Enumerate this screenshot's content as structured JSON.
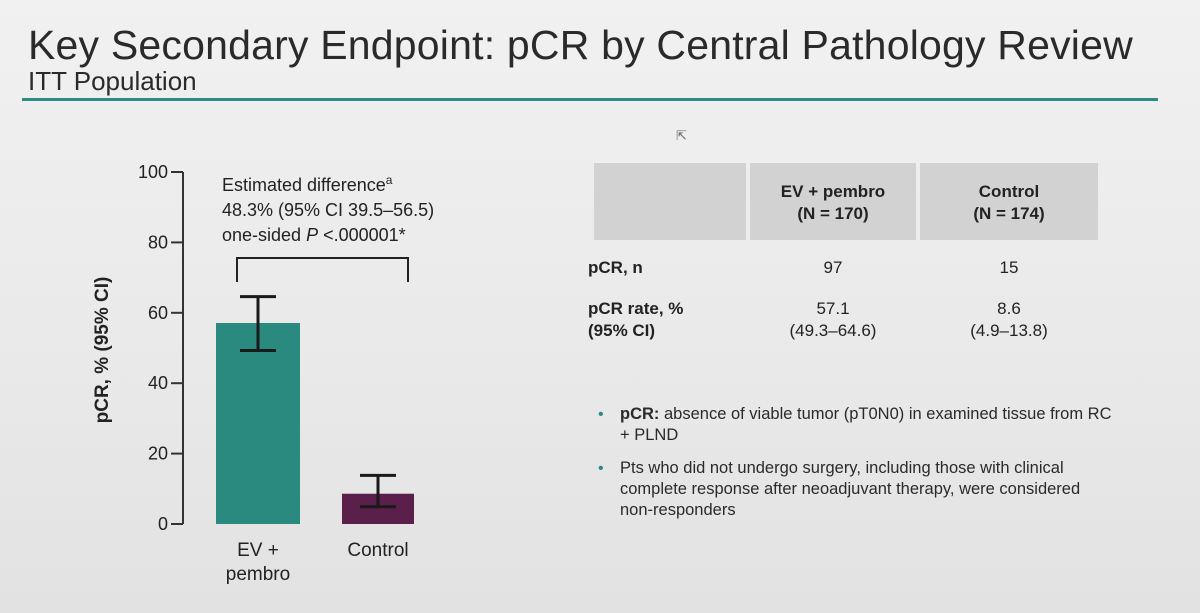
{
  "slide": {
    "title": "Key Secondary Endpoint: pCR by Central Pathology Review",
    "subtitle": "ITT Population",
    "accent_color": "#2e8a82",
    "cursor_icon": "mouse-pointer-icon"
  },
  "chart_data": {
    "type": "bar",
    "ylabel": "pCR, % (95% CI)",
    "ylim": [
      0,
      100
    ],
    "yticks": [
      "0",
      "20",
      "40",
      "60",
      "80",
      "100"
    ],
    "categories": [
      "EV +\npembro",
      "Control"
    ],
    "category_lines": [
      [
        "EV +",
        "pembro"
      ],
      [
        "Control"
      ]
    ],
    "values": [
      57.1,
      8.6
    ],
    "ci_low": [
      49.3,
      4.9
    ],
    "ci_high": [
      64.6,
      13.8
    ],
    "colors": [
      "#2a8a80",
      "#5a1f4a"
    ],
    "annotation": {
      "line1": "Estimated difference",
      "line1_sup": "a",
      "line2": "48.3% (95% CI 39.5–56.5)",
      "line3_prefix": "one-sided ",
      "line3_p": "P",
      "line3_suffix": " <.000001*"
    }
  },
  "table": {
    "columns": [
      {
        "line1": "EV + pembro",
        "line2": "(N = 170)"
      },
      {
        "line1": "Control",
        "line2": "(N = 174)"
      }
    ],
    "rows": [
      {
        "label1": "pCR, n",
        "label2": "",
        "ev1": "97",
        "ev2": "",
        "ctrl1": "15",
        "ctrl2": ""
      },
      {
        "label1": "pCR rate, %",
        "label2": "(95% CI)",
        "ev1": "57.1",
        "ev2": "(49.3–64.6)",
        "ctrl1": "8.6",
        "ctrl2": "(4.9–13.8)"
      }
    ]
  },
  "notes": [
    {
      "bold": "pCR:",
      "text": " absence of viable tumor (pT0N0) in examined tissue from RC + PLND"
    },
    {
      "bold": "",
      "text": "Pts who did not undergo surgery, including those with clinical complete response after neoadjuvant therapy, were considered non-responders"
    }
  ],
  "bullet_char": "•"
}
